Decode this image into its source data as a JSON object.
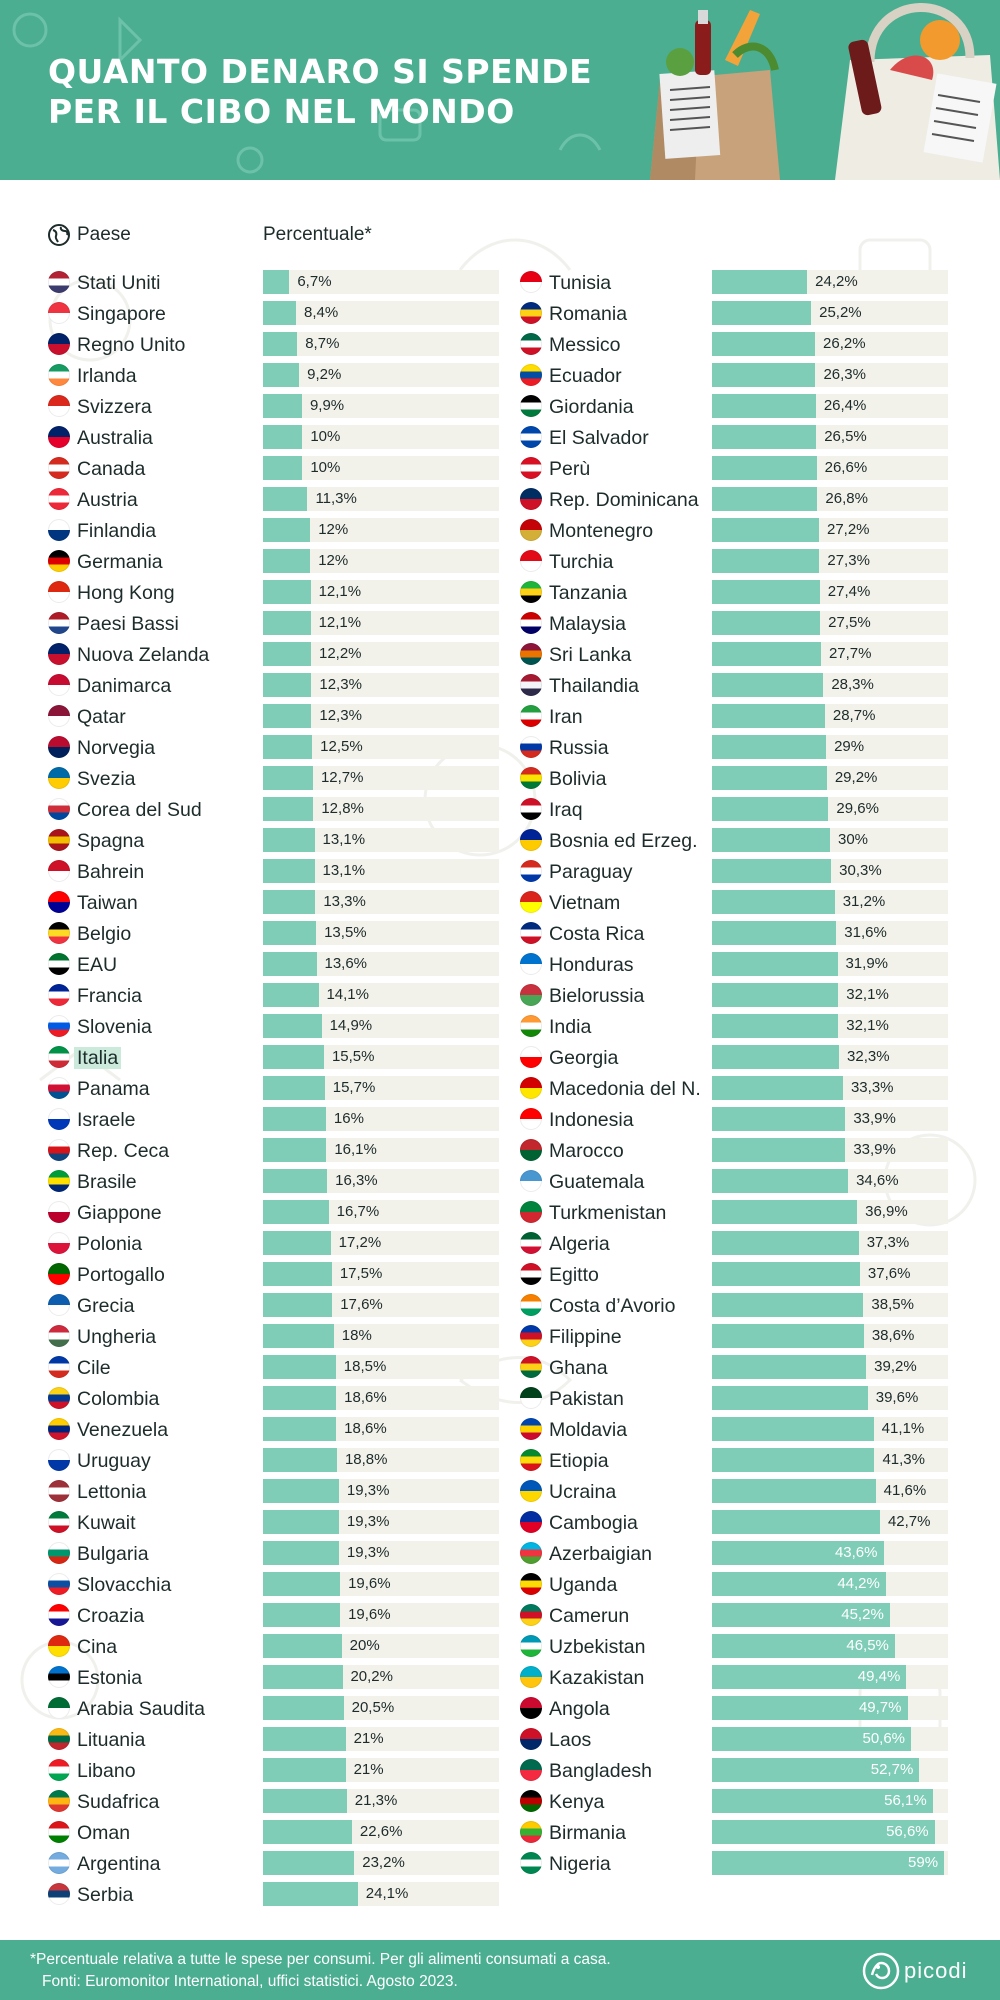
{
  "header": {
    "title_line1": "QUANTO DENARO SI SPENDE",
    "title_line2": "PER IL CIBO NEL MONDO"
  },
  "columns": {
    "country": "Paese",
    "percent": "Percentuale*"
  },
  "chart_data": {
    "type": "bar",
    "orientation": "horizontal",
    "title": "QUANTO DENARO SI SPENDE PER IL CIBO NEL MONDO",
    "xlabel": "Percentuale*",
    "ylabel": "Paese",
    "xlim": [
      0,
      60
    ],
    "highlighted": "Italia",
    "grid": false,
    "categories": [
      "Stati Uniti",
      "Singapore",
      "Regno Unito",
      "Irlanda",
      "Svizzera",
      "Australia",
      "Canada",
      "Austria",
      "Finlandia",
      "Germania",
      "Hong Kong",
      "Paesi Bassi",
      "Nuova Zelanda",
      "Danimarca",
      "Qatar",
      "Norvegia",
      "Svezia",
      "Corea del Sud",
      "Spagna",
      "Bahrein",
      "Taiwan",
      "Belgio",
      "EAU",
      "Francia",
      "Slovenia",
      "Italia",
      "Panama",
      "Israele",
      "Rep. Ceca",
      "Brasile",
      "Giappone",
      "Polonia",
      "Portogallo",
      "Grecia",
      "Ungheria",
      "Cile",
      "Colombia",
      "Venezuela",
      "Uruguay",
      "Lettonia",
      "Kuwait",
      "Bulgaria",
      "Slovacchia",
      "Croazia",
      "Cina",
      "Estonia",
      "Arabia Saudita",
      "Lituania",
      "Libano",
      "Sudafrica",
      "Oman",
      "Argentina",
      "Serbia",
      "Tunisia",
      "Romania",
      "Messico",
      "Ecuador",
      "Giordania",
      "El Salvador",
      "Perù",
      "Rep. Dominicana",
      "Montenegro",
      "Turchia",
      "Tanzania",
      "Malaysia",
      "Sri Lanka",
      "Thailandia",
      "Iran",
      "Russia",
      "Bolivia",
      "Iraq",
      "Bosnia ed Erzeg.",
      "Paraguay",
      "Vietnam",
      "Costa Rica",
      "Honduras",
      "Bielorussia",
      "India",
      "Georgia",
      "Macedonia del N.",
      "Indonesia",
      "Marocco",
      "Guatemala",
      "Turkmenistan",
      "Algeria",
      "Egitto",
      "Costa d’Avorio",
      "Filippine",
      "Ghana",
      "Pakistan",
      "Moldavia",
      "Etiopia",
      "Ucraina",
      "Cambogia",
      "Azerbaigian",
      "Uganda",
      "Camerun",
      "Uzbekistan",
      "Kazakistan",
      "Angola",
      "Laos",
      "Bangladesh",
      "Kenya",
      "Birmania",
      "Nigeria"
    ],
    "values": [
      6.7,
      8.4,
      8.7,
      9.2,
      9.9,
      10,
      10,
      11.3,
      12,
      12,
      12.1,
      12.1,
      12.2,
      12.3,
      12.3,
      12.5,
      12.7,
      12.8,
      13.1,
      13.1,
      13.3,
      13.5,
      13.6,
      14.1,
      14.9,
      15.5,
      15.7,
      16,
      16.1,
      16.3,
      16.7,
      17.2,
      17.5,
      17.6,
      18,
      18.5,
      18.6,
      18.6,
      18.8,
      19.3,
      19.3,
      19.3,
      19.6,
      19.6,
      20,
      20.2,
      20.5,
      21,
      21,
      21.3,
      22.6,
      23.2,
      24.1,
      24.2,
      25.2,
      26.2,
      26.3,
      26.4,
      26.5,
      26.6,
      26.8,
      27.2,
      27.3,
      27.4,
      27.5,
      27.7,
      28.3,
      28.7,
      29,
      29.2,
      29.6,
      30,
      30.3,
      31.2,
      31.6,
      31.9,
      32.1,
      32.1,
      32.3,
      33.3,
      33.9,
      33.9,
      34.6,
      36.9,
      37.3,
      37.6,
      38.5,
      38.6,
      39.2,
      39.6,
      41.1,
      41.3,
      41.6,
      42.7,
      43.6,
      44.2,
      45.2,
      46.5,
      49.4,
      49.7,
      50.6,
      52.7,
      56.1,
      56.6,
      59
    ],
    "labels": [
      "6,7%",
      "8,4%",
      "8,7%",
      "9,2%",
      "9,9%",
      "10%",
      "10%",
      "11,3%",
      "12%",
      "12%",
      "12,1%",
      "12,1%",
      "12,2%",
      "12,3%",
      "12,3%",
      "12,5%",
      "12,7%",
      "12,8%",
      "13,1%",
      "13,1%",
      "13,3%",
      "13,5%",
      "13,6%",
      "14,1%",
      "14,9%",
      "15,5%",
      "15,7%",
      "16%",
      "16,1%",
      "16,3%",
      "16,7%",
      "17,2%",
      "17,5%",
      "17,6%",
      "18%",
      "18,5%",
      "18,6%",
      "18,6%",
      "18,8%",
      "19,3%",
      "19,3%",
      "19,3%",
      "19,6%",
      "19,6%",
      "20%",
      "20,2%",
      "20,5%",
      "21%",
      "21%",
      "21,3%",
      "22,6%",
      "23,2%",
      "24,1%",
      "24,2%",
      "25,2%",
      "26,2%",
      "26,3%",
      "26,4%",
      "26,5%",
      "26,6%",
      "26,8%",
      "27,2%",
      "27,3%",
      "27,4%",
      "27,5%",
      "27,7%",
      "28,3%",
      "28,7%",
      "29%",
      "29,2%",
      "29,6%",
      "30%",
      "30,3%",
      "31,2%",
      "31,6%",
      "31,9%",
      "32,1%",
      "32,1%",
      "32,3%",
      "33,3%",
      "33,9%",
      "33,9%",
      "34,6%",
      "36,9%",
      "37,3%",
      "37,6%",
      "38,5%",
      "38,6%",
      "39,2%",
      "39,6%",
      "41,1%",
      "41,3%",
      "41,6%",
      "42,7%",
      "43,6%",
      "44,2%",
      "45,2%",
      "46,5%",
      "49,4%",
      "49,7%",
      "50,6%",
      "52,7%",
      "56,1%",
      "56,6%",
      "59%"
    ],
    "flag_colors": [
      [
        "#b22234",
        "#ffffff",
        "#3c3b6e"
      ],
      [
        "#ef3340",
        "#ffffff"
      ],
      [
        "#012169",
        "#c8102e"
      ],
      [
        "#169b62",
        "#ffffff",
        "#ff883e"
      ],
      [
        "#da291c",
        "#ffffff"
      ],
      [
        "#012169",
        "#e4002b"
      ],
      [
        "#d52b1e",
        "#ffffff",
        "#d52b1e"
      ],
      [
        "#ed2939",
        "#ffffff",
        "#ed2939"
      ],
      [
        "#ffffff",
        "#003580"
      ],
      [
        "#000000",
        "#dd0000",
        "#ffce00"
      ],
      [
        "#de2910",
        "#ffffff"
      ],
      [
        "#ae1c28",
        "#ffffff",
        "#21468b"
      ],
      [
        "#012169",
        "#c8102e"
      ],
      [
        "#c60c30",
        "#ffffff"
      ],
      [
        "#8a1538",
        "#ffffff"
      ],
      [
        "#ba0c2f",
        "#00205b"
      ],
      [
        "#006aa7",
        "#fecc00"
      ],
      [
        "#ffffff",
        "#cd2e3a",
        "#0047a0"
      ],
      [
        "#aa151b",
        "#f1bf00",
        "#aa151b"
      ],
      [
        "#ce1126",
        "#ffffff"
      ],
      [
        "#fe0000",
        "#000095"
      ],
      [
        "#000000",
        "#fdda24",
        "#ef3340"
      ],
      [
        "#00732f",
        "#ffffff",
        "#000000"
      ],
      [
        "#002395",
        "#ffffff",
        "#ed2939"
      ],
      [
        "#ffffff",
        "#005ce5",
        "#ed1c24"
      ],
      [
        "#009246",
        "#ffffff",
        "#ce2b37"
      ],
      [
        "#ffffff",
        "#d21034",
        "#005293"
      ],
      [
        "#ffffff",
        "#0038b8"
      ],
      [
        "#ffffff",
        "#d7141a",
        "#11457e"
      ],
      [
        "#009c3b",
        "#ffdf00",
        "#002776"
      ],
      [
        "#ffffff",
        "#bc002d"
      ],
      [
        "#ffffff",
        "#dc143c"
      ],
      [
        "#006600",
        "#ff0000"
      ],
      [
        "#0d5eaf",
        "#ffffff"
      ],
      [
        "#cd2a3e",
        "#ffffff",
        "#436f4d"
      ],
      [
        "#0039a6",
        "#ffffff",
        "#d52b1e"
      ],
      [
        "#fcd116",
        "#003893",
        "#ce1126"
      ],
      [
        "#ffcc00",
        "#00247d",
        "#cf142b"
      ],
      [
        "#ffffff",
        "#0038a8"
      ],
      [
        "#9e3039",
        "#ffffff",
        "#9e3039"
      ],
      [
        "#007a3d",
        "#ffffff",
        "#ce1126"
      ],
      [
        "#ffffff",
        "#00966e",
        "#d62612"
      ],
      [
        "#ffffff",
        "#0b4ea2",
        "#ee1c25"
      ],
      [
        "#ff0000",
        "#ffffff",
        "#171796"
      ],
      [
        "#de2910",
        "#ffde00"
      ],
      [
        "#0072ce",
        "#000000",
        "#ffffff"
      ],
      [
        "#006c35",
        "#ffffff"
      ],
      [
        "#fdb913",
        "#006a44",
        "#c1272d"
      ],
      [
        "#ed1c24",
        "#ffffff",
        "#00a651"
      ],
      [
        "#007a4d",
        "#ffb612",
        "#de3831"
      ],
      [
        "#db161b",
        "#ffffff",
        "#008000"
      ],
      [
        "#74acdf",
        "#ffffff",
        "#74acdf"
      ],
      [
        "#c6363c",
        "#0c4076",
        "#ffffff"
      ],
      [
        "#e70013",
        "#ffffff"
      ],
      [
        "#002b7f",
        "#fcd116",
        "#ce1126"
      ],
      [
        "#006847",
        "#ffffff",
        "#ce1126"
      ],
      [
        "#ffdd00",
        "#034ea2",
        "#ed1c24"
      ],
      [
        "#000000",
        "#ffffff",
        "#007a3d"
      ],
      [
        "#0047ab",
        "#ffffff",
        "#0047ab"
      ],
      [
        "#d91023",
        "#ffffff",
        "#d91023"
      ],
      [
        "#002d62",
        "#ce1126"
      ],
      [
        "#c40308",
        "#d4af37"
      ],
      [
        "#e30a17",
        "#ffffff"
      ],
      [
        "#1eb53a",
        "#fcd116",
        "#000000"
      ],
      [
        "#cc0001",
        "#ffffff",
        "#010066"
      ],
      [
        "#8d153a",
        "#eb7400",
        "#00534e"
      ],
      [
        "#a51931",
        "#f4f5f8",
        "#2d2a4a"
      ],
      [
        "#239f40",
        "#ffffff",
        "#da0000"
      ],
      [
        "#ffffff",
        "#0039a6",
        "#d52b1e"
      ],
      [
        "#d52b1e",
        "#f9e300",
        "#007934"
      ],
      [
        "#ce1126",
        "#ffffff",
        "#000000"
      ],
      [
        "#002395",
        "#fecb00"
      ],
      [
        "#d52b1e",
        "#ffffff",
        "#0038a8"
      ],
      [
        "#da251d",
        "#ffff00"
      ],
      [
        "#002b7f",
        "#ffffff",
        "#ce1126"
      ],
      [
        "#0073cf",
        "#ffffff"
      ],
      [
        "#c8313e",
        "#4aa657"
      ],
      [
        "#ff9933",
        "#ffffff",
        "#138808"
      ],
      [
        "#ffffff",
        "#ff0000"
      ],
      [
        "#d20000",
        "#ffe600"
      ],
      [
        "#ff0000",
        "#ffffff"
      ],
      [
        "#c1272d",
        "#006233"
      ],
      [
        "#4997d0",
        "#ffffff"
      ],
      [
        "#00843d",
        "#d22630"
      ],
      [
        "#006233",
        "#ffffff",
        "#d21034"
      ],
      [
        "#ce1126",
        "#ffffff",
        "#000000"
      ],
      [
        "#f77f00",
        "#ffffff",
        "#009e60"
      ],
      [
        "#0038a8",
        "#ce1126",
        "#fcd116"
      ],
      [
        "#ce1126",
        "#fcd116",
        "#006b3f"
      ],
      [
        "#01411c",
        "#ffffff"
      ],
      [
        "#0046ae",
        "#ffd200",
        "#cc092f"
      ],
      [
        "#078930",
        "#fcdd09",
        "#da121a"
      ],
      [
        "#0057b7",
        "#ffd700"
      ],
      [
        "#032ea1",
        "#e00025"
      ],
      [
        "#00b5e2",
        "#ef3340",
        "#509e2f"
      ],
      [
        "#000000",
        "#fcdc04",
        "#d90000"
      ],
      [
        "#007a5e",
        "#ce1126",
        "#fcd116"
      ],
      [
        "#0099b5",
        "#ffffff",
        "#1eb53a"
      ],
      [
        "#00afca",
        "#fec50c"
      ],
      [
        "#cc092f",
        "#000000"
      ],
      [
        "#ce1126",
        "#002868"
      ],
      [
        "#006a4e",
        "#f42a41"
      ],
      [
        "#000000",
        "#bb0000",
        "#006600"
      ],
      [
        "#fecb00",
        "#34b233",
        "#ea2839"
      ],
      [
        "#008751",
        "#ffffff",
        "#008751"
      ]
    ]
  },
  "footer": {
    "note": "*Percentuale relativa a tutte le spese per consumi. Per gli alimenti consumati a casa.",
    "source": "Fonti: Euromonitor International, uffici statistici. Agosto 2023.",
    "brand": "picodi"
  },
  "colors": {
    "accent": "#4bae91",
    "bar": "#7fcdb7",
    "track": "#f2f2ea",
    "highlight": "#cbeadc"
  }
}
